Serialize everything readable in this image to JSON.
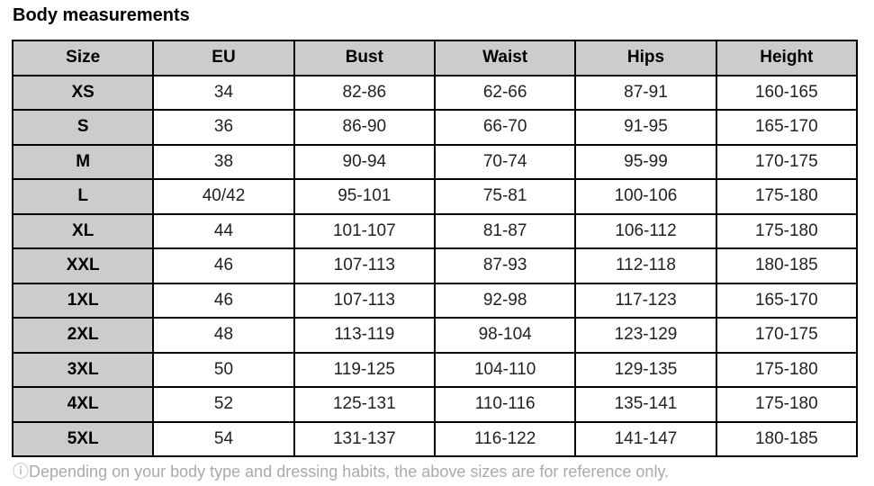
{
  "title": "Body measurements",
  "table": {
    "headers": [
      "Size",
      "EU",
      "Bust",
      "Waist",
      "Hips",
      "Height"
    ],
    "rows": [
      [
        "XS",
        "34",
        "82-86",
        "62-66",
        "87-91",
        "160-165"
      ],
      [
        "S",
        "36",
        "86-90",
        "66-70",
        "91-95",
        "165-170"
      ],
      [
        "M",
        "38",
        "90-94",
        "70-74",
        "95-99",
        "170-175"
      ],
      [
        "L",
        "40/42",
        "95-101",
        "75-81",
        "100-106",
        "175-180"
      ],
      [
        "XL",
        "44",
        "101-107",
        "81-87",
        "106-112",
        "175-180"
      ],
      [
        "XXL",
        "46",
        "107-113",
        "87-93",
        "112-118",
        "180-185"
      ],
      [
        "1XL",
        "46",
        "107-113",
        "92-98",
        "117-123",
        "165-170"
      ],
      [
        "2XL",
        "48",
        "113-119",
        "98-104",
        "123-129",
        "170-175"
      ],
      [
        "3XL",
        "50",
        "119-125",
        "104-110",
        "129-135",
        "175-180"
      ],
      [
        "4XL",
        "52",
        "125-131",
        "110-116",
        "135-141",
        "175-180"
      ],
      [
        "5XL",
        "54",
        "131-137",
        "116-122",
        "141-147",
        "180-185"
      ]
    ]
  },
  "note": {
    "icon": "info-icon",
    "icon_glyph": "ⓘ",
    "text": "Depending on your body type and dressing habits, the above sizes are for reference only."
  },
  "colors": {
    "header_bg": "#cccccc",
    "border": "#000000",
    "note": "#aaaaaa"
  }
}
